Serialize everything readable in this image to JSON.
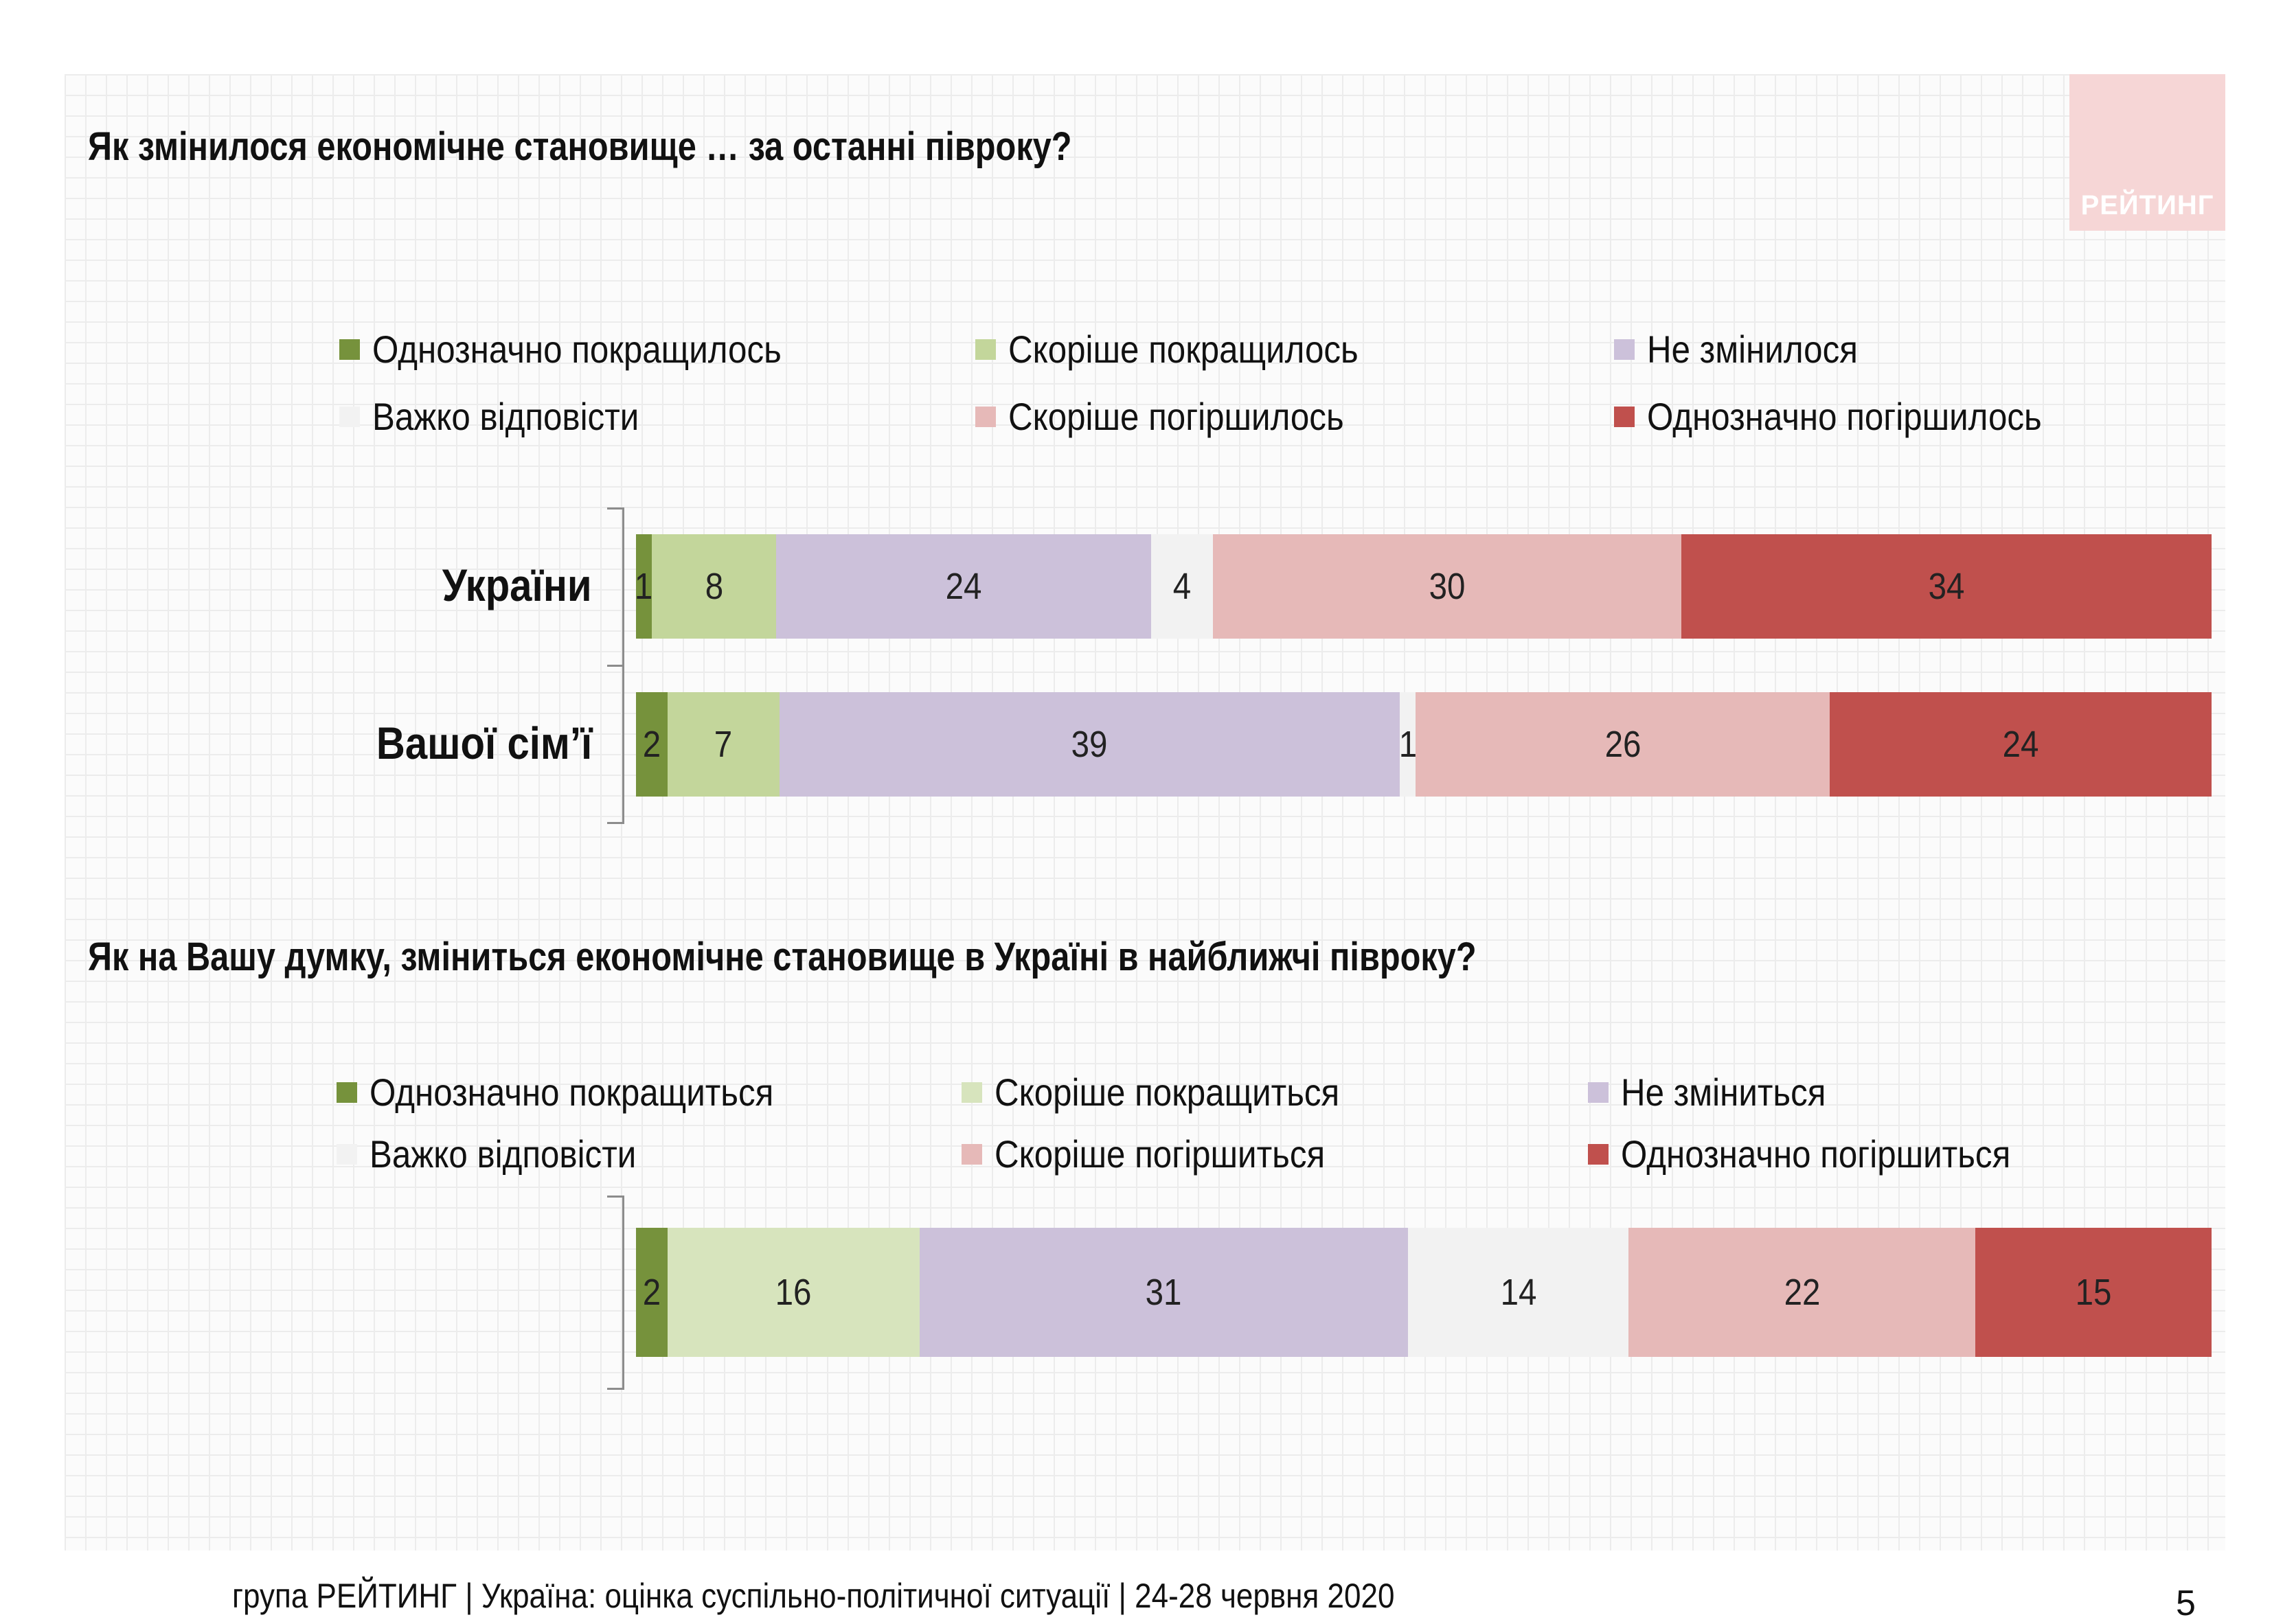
{
  "logo_text": "РЕЙТИНГ",
  "footer": "група РЕЙТИНГ |  Україна: оцінка суспільно-політичної  ситуації  | 24-28 червня  2020",
  "page_number": "5",
  "colors": {
    "strong_improve": "#76923c",
    "somewhat_improve": "#c3d69b",
    "somewhat_improve_2": "#d7e4bd",
    "no_change": "#ccc1da",
    "hard_to_say": "#f2f2f2",
    "somewhat_worse": "#e6b9b8",
    "strong_worse": "#c0504d"
  },
  "chart_data": [
    {
      "type": "bar",
      "orientation": "horizontal-stacked",
      "title": "Як змінилося економічне становище … за останні півроку?",
      "categories": [
        "України",
        "Вашої сім’ї"
      ],
      "series": [
        {
          "name": "Однозначно покращилось",
          "values": [
            1,
            2
          ]
        },
        {
          "name": "Скоріше покращилось",
          "values": [
            8,
            7
          ]
        },
        {
          "name": "Не змінилося",
          "values": [
            24,
            39
          ]
        },
        {
          "name": "Важко відповісти",
          "values": [
            4,
            1
          ]
        },
        {
          "name": "Скоріше погіршилось",
          "values": [
            30,
            26
          ]
        },
        {
          "name": "Однозначно погіршилось",
          "values": [
            34,
            24
          ]
        }
      ],
      "legend_position": "top",
      "data_labels": true
    },
    {
      "type": "bar",
      "orientation": "horizontal-stacked",
      "title": "Як на Вашу думку, зміниться економічне становище в Україні в найближчі півроку?",
      "categories": [
        ""
      ],
      "series": [
        {
          "name": "Однозначно покращиться",
          "values": [
            2
          ]
        },
        {
          "name": "Скоріше покращиться",
          "values": [
            16
          ]
        },
        {
          "name": "Не зміниться",
          "values": [
            31
          ]
        },
        {
          "name": "Важко відповісти",
          "values": [
            14
          ]
        },
        {
          "name": "Скоріше погіршиться",
          "values": [
            22
          ]
        },
        {
          "name": "Однозначно погіршиться",
          "values": [
            15
          ]
        }
      ],
      "legend_position": "top",
      "data_labels": true
    }
  ]
}
